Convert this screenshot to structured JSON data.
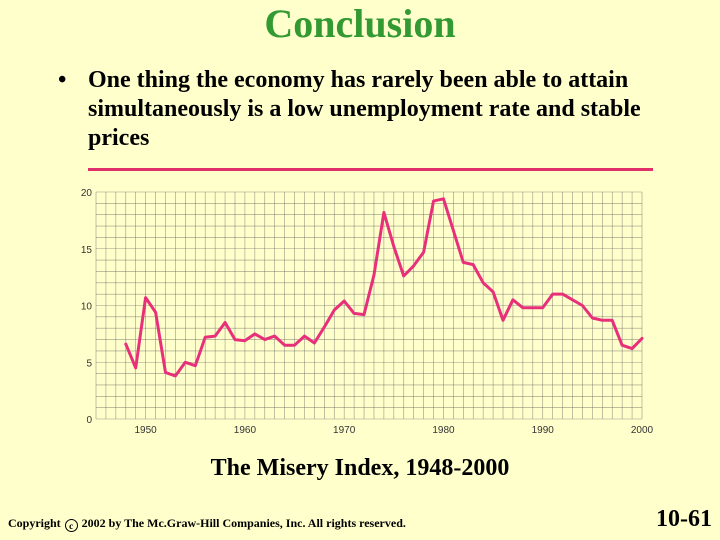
{
  "slide": {
    "title": "Conclusion",
    "bullet_symbol": "•",
    "bullet": "One thing the economy has rarely been able to attain simultaneously is a low unemployment rate and stable prices",
    "caption": "The Misery Index, 1948-2000",
    "copyright_prefix": "Copyright",
    "copyright_symbol": "c",
    "copyright_suffix": "2002 by The Mc.Graw-Hill Companies, Inc.  All rights reserved.",
    "slide_number": "10-61"
  },
  "colors": {
    "title": "#339933",
    "divider": "#E0306A",
    "line": "#E8307A",
    "grid": "#555555",
    "plot_background": "#FFFFCC"
  },
  "chart_data": {
    "type": "line",
    "title": "",
    "xlabel": "",
    "ylabel": "",
    "xlim": [
      1945,
      2000
    ],
    "ylim": [
      0,
      20
    ],
    "grid": true,
    "xticks": [
      1950,
      1960,
      1970,
      1980,
      1990,
      2000
    ],
    "yticks": [
      0,
      5,
      10,
      15,
      20
    ],
    "x": [
      1948,
      1949,
      1950,
      1951,
      1952,
      1953,
      1954,
      1955,
      1956,
      1957,
      1958,
      1959,
      1960,
      1961,
      1962,
      1963,
      1964,
      1965,
      1966,
      1967,
      1968,
      1969,
      1970,
      1971,
      1972,
      1973,
      1974,
      1975,
      1976,
      1977,
      1978,
      1979,
      1980,
      1981,
      1982,
      1983,
      1984,
      1985,
      1986,
      1987,
      1988,
      1989,
      1990,
      1991,
      1992,
      1993,
      1994,
      1995,
      1996,
      1997,
      1998,
      1999,
      2000
    ],
    "series": [
      {
        "values": [
          6.6,
          4.5,
          10.7,
          9.4,
          4.1,
          3.8,
          5.0,
          4.7,
          7.2,
          7.3,
          8.5,
          7.0,
          6.9,
          7.5,
          7.0,
          7.3,
          6.5,
          6.5,
          7.3,
          6.7,
          8.1,
          9.6,
          10.4,
          9.3,
          9.2,
          12.7,
          18.2,
          15.2,
          12.6,
          13.5,
          14.7,
          19.2,
          19.4,
          16.6,
          13.8,
          13.6,
          12.0,
          11.2,
          8.7,
          10.5,
          9.8,
          9.8,
          9.8,
          11.0,
          11.0,
          10.5,
          10.0,
          8.9,
          8.7,
          8.7,
          6.5,
          6.2,
          7.1
        ]
      }
    ]
  }
}
